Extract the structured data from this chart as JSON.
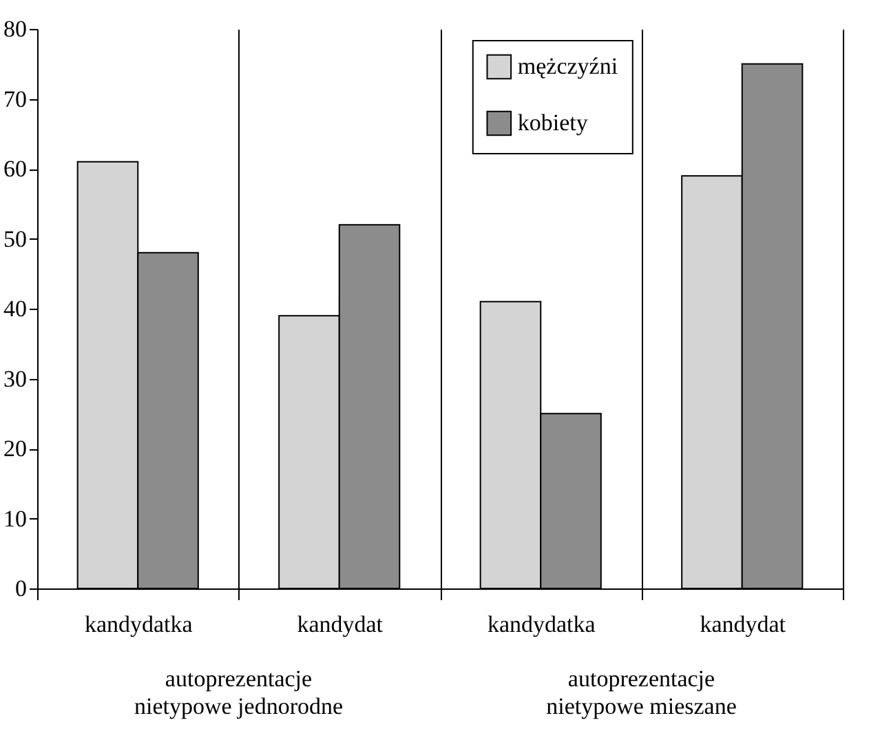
{
  "chart_data": {
    "type": "bar",
    "categories": [
      "kandydatka",
      "kandydat",
      "kandydatka",
      "kandydat"
    ],
    "series": [
      {
        "name": "mężczyźni",
        "color": "#d4d4d4",
        "values": [
          61,
          39,
          41,
          59
        ]
      },
      {
        "name": "kobiety",
        "color": "#8c8c8c",
        "values": [
          48,
          52,
          25,
          75
        ]
      }
    ],
    "ylim": [
      0,
      80
    ],
    "yticks": [
      0,
      10,
      20,
      30,
      40,
      50,
      60,
      70,
      80
    ],
    "grid": "x",
    "legend": "top",
    "annotations": [
      "autoprezentacje nietypowe jednorodne",
      "autoprezentacje nietypowe mieszane"
    ]
  }
}
